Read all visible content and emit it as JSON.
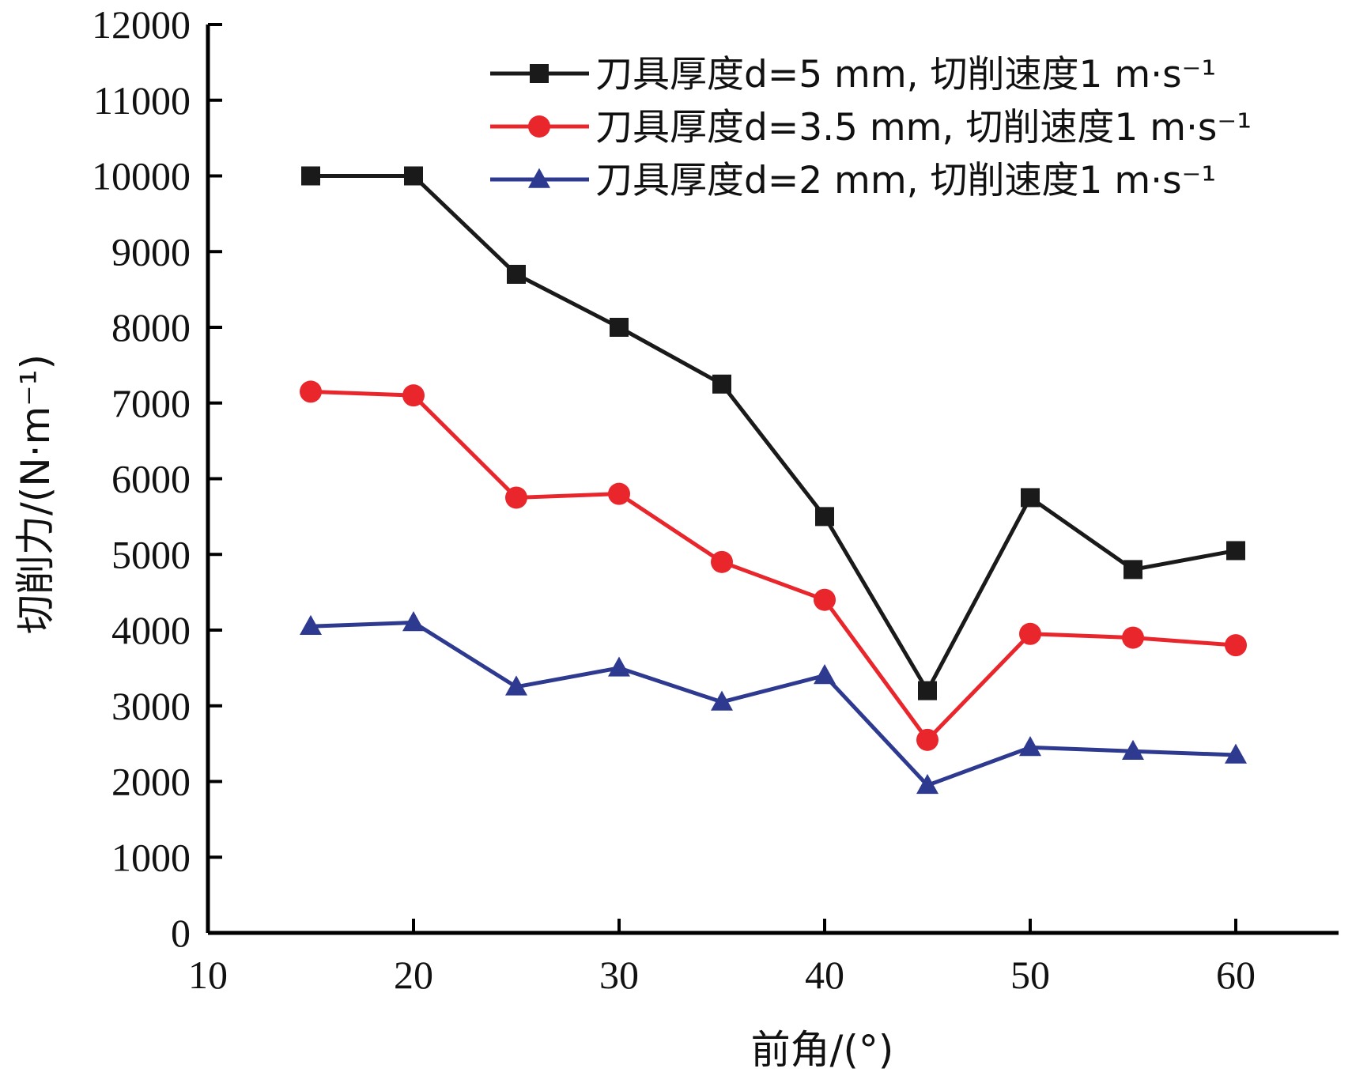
{
  "chart_data": {
    "type": "line",
    "xlabel": "前角/(°)",
    "ylabel": "切削力/(N·m⁻¹)",
    "xlim": [
      10,
      65
    ],
    "ylim": [
      0,
      12000
    ],
    "xticks": [
      10,
      20,
      30,
      40,
      50,
      60
    ],
    "yticks": [
      0,
      1000,
      2000,
      3000,
      4000,
      5000,
      6000,
      7000,
      8000,
      9000,
      10000,
      11000,
      12000
    ],
    "x": [
      15,
      20,
      25,
      30,
      35,
      40,
      45,
      50,
      55,
      60
    ],
    "legend_position": "top-right",
    "grid": false,
    "series": [
      {
        "name": "刀具厚度d=5 mm, 切削速度1 m·s⁻¹",
        "color": "#1a1a1a",
        "marker": "square",
        "values": [
          10000,
          10000,
          8700,
          8000,
          7250,
          5500,
          3200,
          5750,
          4800,
          5050
        ]
      },
      {
        "name": "刀具厚度d=3.5 mm, 切削速度1 m·s⁻¹",
        "color": "#e8262c",
        "marker": "circle",
        "values": [
          7150,
          7100,
          5750,
          5800,
          4900,
          4400,
          2550,
          3950,
          3900,
          3800
        ]
      },
      {
        "name": "刀具厚度d=2 mm, 切削速度1 m·s⁻¹",
        "color": "#2e3a8f",
        "marker": "triangle",
        "values": [
          4050,
          4100,
          3250,
          3500,
          3050,
          3400,
          1950,
          2450,
          2400,
          2350
        ]
      }
    ]
  }
}
